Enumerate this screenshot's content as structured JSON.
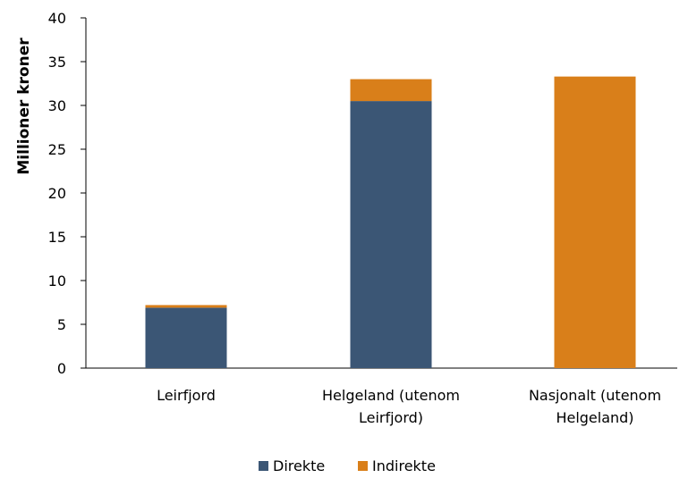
{
  "chart_data": {
    "type": "bar",
    "stacked": true,
    "ylabel": "Millioner kroner",
    "xlabel": "",
    "ylim": [
      0,
      40
    ],
    "yticks": [
      0,
      5,
      10,
      15,
      20,
      25,
      30,
      35,
      40
    ],
    "grid": false,
    "legend_position": "bottom",
    "categories": [
      [
        "Leirfjord"
      ],
      [
        "Helgeland (utenom",
        "Leirfjord)"
      ],
      [
        "Nasjonalt (utenom",
        "Helgeland)"
      ]
    ],
    "series": [
      {
        "name": "Direkte",
        "color": "#3b5675",
        "values": [
          6.9,
          30.5,
          0
        ]
      },
      {
        "name": "Indirekte",
        "color": "#d97f1a",
        "values": [
          0.3,
          2.5,
          33.3
        ]
      }
    ]
  }
}
